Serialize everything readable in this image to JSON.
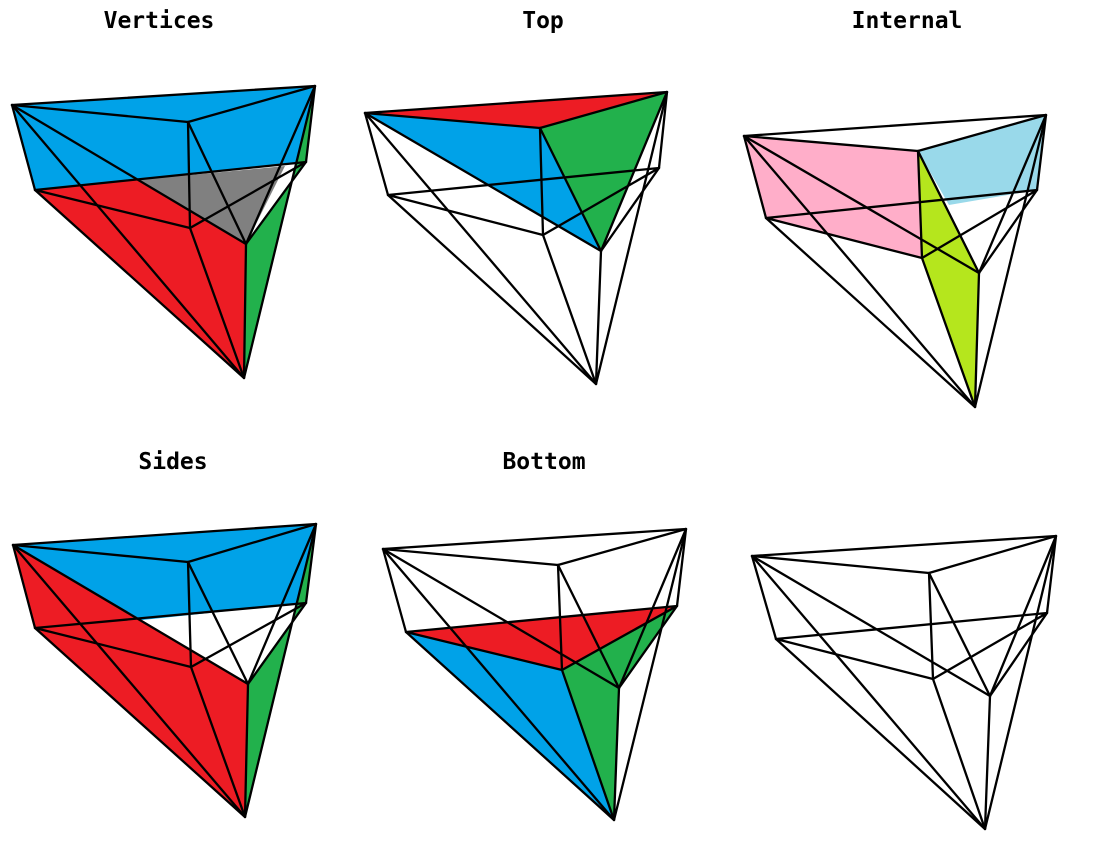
{
  "colors": {
    "red": "#ed1c24",
    "blue": "#00a2e8",
    "green": "#22b14c",
    "gray": "#808080",
    "pink": "#ffaec9",
    "light_blue": "#99d9ea",
    "lime": "#b5e61d",
    "white": "#ffffff"
  },
  "panels": [
    {
      "id": "vertices",
      "title": "Vertices"
    },
    {
      "id": "top",
      "title": "Top"
    },
    {
      "id": "internal",
      "title": "Internal"
    },
    {
      "id": "sides",
      "title": "Sides"
    },
    {
      "id": "bottom",
      "title": "Bottom"
    },
    {
      "id": "plain",
      "title": ""
    }
  ]
}
